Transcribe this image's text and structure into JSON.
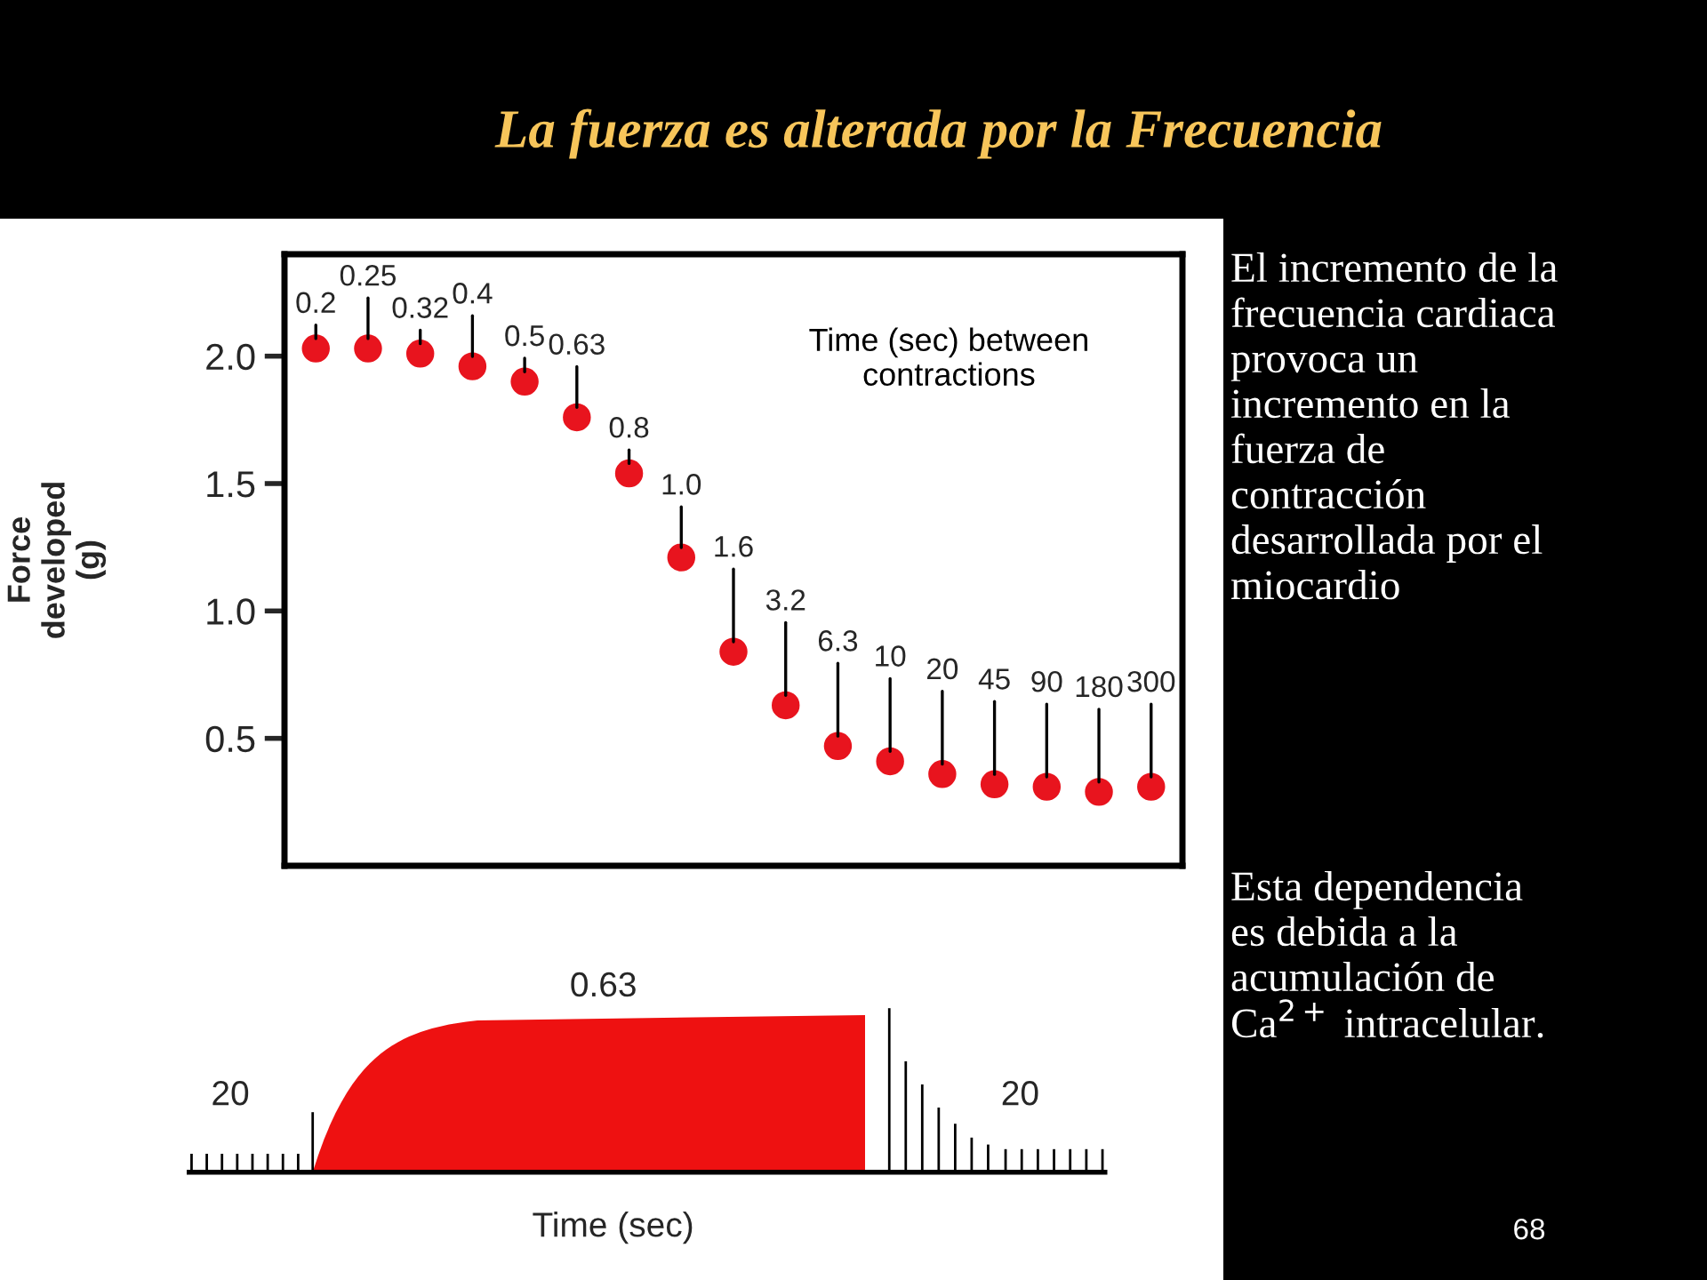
{
  "chart_data": [
    {
      "type": "scatter",
      "title": "La fuerza es alterada por la Frecuencia",
      "ylabel": "Force\ndeveloped\n(g)",
      "categories": [
        "0.2",
        "0.25",
        "0.32",
        "0.4",
        "0.5",
        "0.63",
        "0.8",
        "1.0",
        "1.6",
        "3.2",
        "6.3",
        "10",
        "20",
        "45",
        "90",
        "180",
        "300"
      ],
      "values": [
        2.03,
        2.03,
        2.01,
        1.96,
        1.9,
        1.76,
        1.54,
        1.21,
        0.84,
        0.63,
        0.47,
        0.41,
        0.36,
        0.32,
        0.31,
        0.29,
        0.31
      ],
      "color": "#e8141e",
      "marker": "circle",
      "ylim": [
        0,
        2.4
      ],
      "yticks": [
        0.5,
        {
          "value": 1.0,
          "label": "1.0"
        },
        1.5,
        {
          "value": 2.0,
          "label": "2.0"
        }
      ],
      "tick_labels": "y",
      "grid": false,
      "annotations": [
        "Time (sec) between\ncontractions",
        "El incremento de la\nfrecuencia cardiaca\nprovoca un\nincremento en la\nfuerza de\ncontracción\ndesarrollada por el\nmiocardio",
        "Esta dependencia\nes debida a la\nacumulación de\nCa$^{2+}$ intracelular.",
        "68"
      ]
    },
    {
      "type": "other",
      "xlabel": "Time (sec)",
      "annotations": [
        "20",
        "0.63",
        "20"
      ]
    }
  ]
}
